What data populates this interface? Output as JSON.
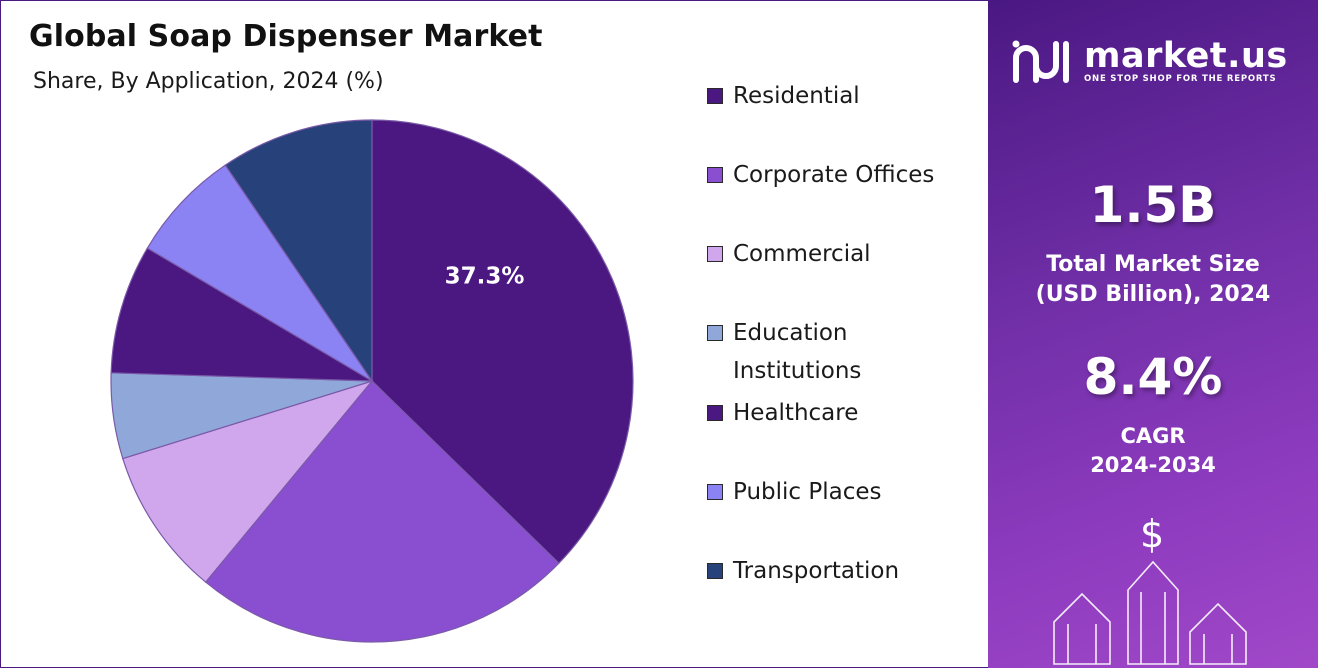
{
  "title": "Global Soap Dispenser Market",
  "subtitle": "Share, By Application, 2024 (%)",
  "chart_data": {
    "type": "pie",
    "categories": [
      "Residential",
      "Corporate Offices",
      "Commercial",
      "Education Institutions",
      "Healthcare",
      "Public Places",
      "Transportation"
    ],
    "values": [
      37.3,
      23.7,
      9.2,
      5.3,
      8.0,
      7.0,
      9.5
    ],
    "data_labels": [
      "37.3%",
      "",
      "",
      "",
      "",
      "",
      ""
    ],
    "colors": [
      "#4b1780",
      "#8a4fd1",
      "#d0a6ec",
      "#8fa8d9",
      "#4b1780",
      "#8b82f3",
      "#27427a"
    ],
    "start_angle_deg": 0,
    "direction": "clockwise",
    "legend_position": "right"
  },
  "legend": [
    {
      "label": "Residential",
      "color": "#4b1780"
    },
    {
      "label": "Corporate Offices",
      "color": "#8a4fd1"
    },
    {
      "label": "Commercial",
      "color": "#d0a6ec"
    },
    {
      "label": "Education Institutions",
      "color": "#8fa8d9"
    },
    {
      "label": "Healthcare",
      "color": "#4b1780"
    },
    {
      "label": "Public Places",
      "color": "#8b82f3"
    },
    {
      "label": "Transportation",
      "color": "#27427a"
    }
  ],
  "brand": {
    "name": "market.us",
    "tagline": "ONE STOP SHOP FOR THE REPORTS"
  },
  "stats": {
    "market_size": "1.5B",
    "market_size_label_1": "Total Market Size",
    "market_size_label_2": "(USD Billion), 2024",
    "cagr": "8.4%",
    "cagr_label_1": "CAGR",
    "cagr_label_2": "2024-2034"
  },
  "icons": {
    "currency": "$",
    "decor": "growth-arrows-icon"
  }
}
